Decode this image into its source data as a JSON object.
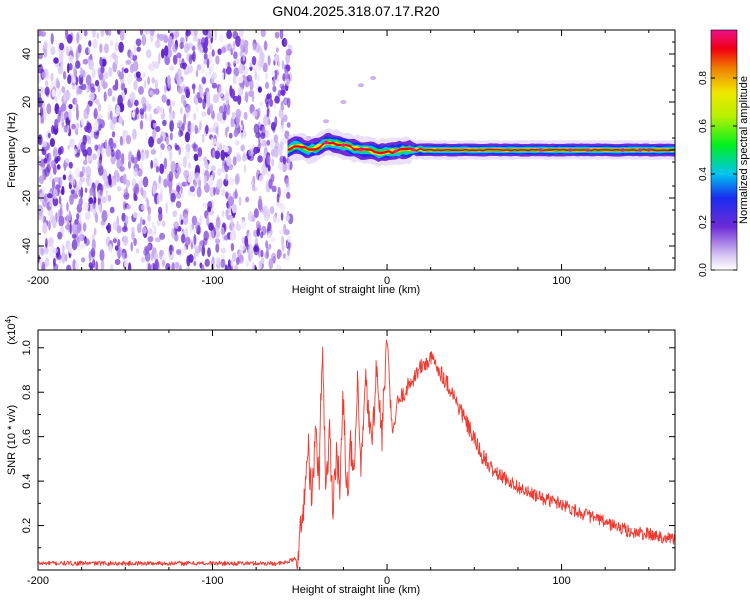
{
  "title": "GN04.2025.318.07.17.R20",
  "colors": {
    "snr_line": "#ee3a30",
    "band": "#e0113d",
    "axis": "#000000"
  },
  "chart_data": [
    {
      "type": "heatmap",
      "title": "GN04.2025.318.07.17.R20",
      "xlabel": "Height of straight line (km)",
      "ylabel": "Frequency (Hz)",
      "xlim": [
        -200,
        165
      ],
      "ylim": [
        -50,
        50
      ],
      "x_ticks": [
        -200,
        -100,
        0,
        100
      ],
      "y_ticks": [
        -40,
        -20,
        0,
        20,
        40
      ],
      "colorbar": {
        "label": "Normalized spectral amplitude",
        "range": [
          0,
          1
        ],
        "ticks": [
          "0.0",
          "0.2",
          "0.4",
          "0.6",
          "0.8"
        ]
      },
      "noise_region_x": [
        -200,
        -55
      ],
      "signal_band_center_hz": [
        [
          -57,
          0
        ],
        [
          -52,
          2
        ],
        [
          -45,
          0
        ],
        [
          -40,
          1
        ],
        [
          -35,
          3
        ],
        [
          -30,
          3
        ],
        [
          -25,
          2
        ],
        [
          -20,
          1
        ],
        [
          -15,
          0
        ],
        [
          -10,
          0
        ],
        [
          -5,
          -1
        ],
        [
          0,
          -1
        ],
        [
          10,
          0
        ],
        [
          20,
          0
        ],
        [
          40,
          0
        ],
        [
          60,
          0
        ],
        [
          80,
          0
        ],
        [
          100,
          0
        ],
        [
          120,
          0
        ],
        [
          140,
          0
        ],
        [
          165,
          0
        ]
      ],
      "faint_streak": [
        [
          -45,
          5
        ],
        [
          -35,
          12
        ],
        [
          -25,
          20
        ],
        [
          -15,
          27
        ],
        [
          -8,
          30
        ]
      ]
    },
    {
      "type": "line",
      "xlabel": "Height of straight line (km)",
      "ylabel": "SNR (10 * v/v)",
      "y_scale_label": "(x10^4)",
      "xlim": [
        -200,
        165
      ],
      "ylim": [
        0,
        1.08
      ],
      "x_ticks": [
        -200,
        -100,
        0,
        100
      ],
      "y_ticks": [
        "0.2",
        "0.4",
        "0.6",
        "0.8",
        "1.0"
      ],
      "series": [
        {
          "values": [
            [
              -200,
              0.03
            ],
            [
              -180,
              0.03
            ],
            [
              -160,
              0.03
            ],
            [
              -140,
              0.03
            ],
            [
              -120,
              0.03
            ],
            [
              -100,
              0.03
            ],
            [
              -80,
              0.03
            ],
            [
              -60,
              0.03
            ],
            [
              -52,
              0.05
            ],
            [
              -49,
              0.18
            ],
            [
              -47,
              0.38
            ],
            [
              -45,
              0.55
            ],
            [
              -43,
              0.3
            ],
            [
              -41,
              0.62
            ],
            [
              -39,
              0.4
            ],
            [
              -37,
              1.03
            ],
            [
              -35,
              0.35
            ],
            [
              -33,
              0.62
            ],
            [
              -31,
              0.3
            ],
            [
              -29,
              0.55
            ],
            [
              -27,
              0.35
            ],
            [
              -25,
              0.8
            ],
            [
              -23,
              0.35
            ],
            [
              -21,
              0.55
            ],
            [
              -19,
              0.4
            ],
            [
              -17,
              0.82
            ],
            [
              -15,
              0.45
            ],
            [
              -12,
              0.85
            ],
            [
              -9,
              0.55
            ],
            [
              -6,
              0.9
            ],
            [
              -3,
              0.6
            ],
            [
              0,
              1.05
            ],
            [
              3,
              0.6
            ],
            [
              6,
              0.75
            ],
            [
              10,
              0.8
            ],
            [
              14,
              0.85
            ],
            [
              18,
              0.9
            ],
            [
              22,
              0.93
            ],
            [
              26,
              0.95
            ],
            [
              30,
              0.9
            ],
            [
              36,
              0.82
            ],
            [
              42,
              0.72
            ],
            [
              48,
              0.62
            ],
            [
              54,
              0.52
            ],
            [
              60,
              0.45
            ],
            [
              70,
              0.4
            ],
            [
              80,
              0.35
            ],
            [
              90,
              0.32
            ],
            [
              100,
              0.3
            ],
            [
              110,
              0.26
            ],
            [
              120,
              0.23
            ],
            [
              130,
              0.2
            ],
            [
              140,
              0.17
            ],
            [
              150,
              0.16
            ],
            [
              165,
              0.14
            ]
          ]
        }
      ]
    }
  ]
}
